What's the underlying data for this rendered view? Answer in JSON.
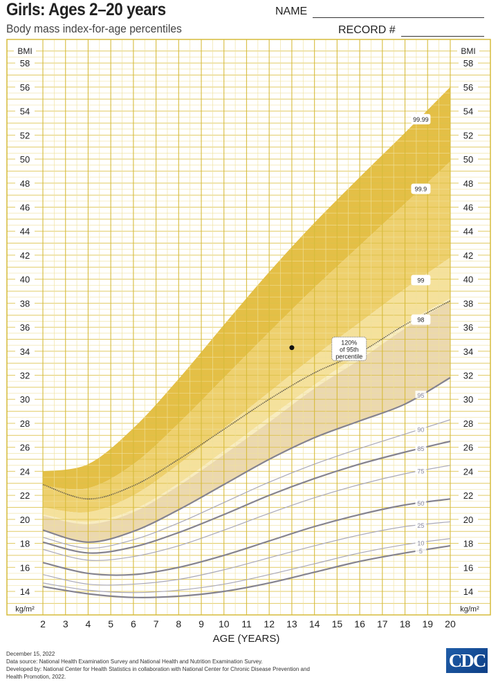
{
  "header": {
    "title": "Girls: Ages 2–20 years",
    "subtitle": "Body mass index-for-age percentiles",
    "name_label": "NAME",
    "record_label": "RECORD #"
  },
  "chart_data": {
    "type": "line",
    "xlabel": "AGE (YEARS)",
    "ylabel_left": "BMI",
    "ylabel_right": "BMI",
    "unit_left": "kg/m²",
    "unit_right": "kg/m²",
    "xlim": [
      2,
      20
    ],
    "ylim": [
      13,
      59
    ],
    "x_ticks": [
      2,
      3,
      4,
      5,
      6,
      7,
      8,
      9,
      10,
      11,
      12,
      13,
      14,
      15,
      16,
      17,
      18,
      19,
      20
    ],
    "y_ticks": [
      14,
      16,
      18,
      20,
      22,
      24,
      26,
      28,
      30,
      32,
      34,
      36,
      38,
      40,
      42,
      44,
      46,
      48,
      50,
      52,
      54,
      56,
      58
    ],
    "grid": true,
    "ages": [
      2,
      4,
      6,
      8,
      10,
      12,
      14,
      16,
      18,
      20
    ],
    "bands": [
      {
        "label": "99.99",
        "color": "#e3bc3c",
        "upper": [
          24.0,
          24.6,
          27.6,
          31.7,
          36.2,
          40.6,
          44.7,
          48.5,
          52.2,
          56.0
        ],
        "lower": [
          22.8,
          22.6,
          24.6,
          28.0,
          31.8,
          35.6,
          39.3,
          42.8,
          46.3,
          49.8
        ],
        "label_age": 18.7,
        "label_bmi": 53.3
      },
      {
        "label": "99.9",
        "color": "#edcd66",
        "upper": [
          22.8,
          22.6,
          24.6,
          28.0,
          31.8,
          35.6,
          39.3,
          42.8,
          46.3,
          49.8
        ],
        "lower": [
          21.0,
          20.6,
          22.0,
          24.6,
          27.6,
          30.6,
          33.6,
          36.4,
          39.2,
          41.8
        ],
        "label_age": 18.7,
        "label_bmi": 47.5
      },
      {
        "label": "99",
        "color": "#f4df97",
        "upper": [
          21.0,
          20.6,
          22.0,
          24.6,
          27.6,
          30.6,
          33.6,
          36.4,
          39.2,
          41.8
        ],
        "lower": [
          20.4,
          19.8,
          20.8,
          23.0,
          25.7,
          28.5,
          31.2,
          33.8,
          36.3,
          38.4
        ],
        "label_age": 18.7,
        "label_bmi": 39.9
      },
      {
        "label": "98",
        "color": "#f8ebbd",
        "upper": [
          20.4,
          19.8,
          20.8,
          23.0,
          25.7,
          28.5,
          31.2,
          33.8,
          36.3,
          38.4
        ],
        "lower": [
          20.3,
          19.6,
          20.6,
          22.8,
          25.4,
          28.1,
          30.9,
          33.3,
          35.9,
          38.2
        ],
        "label_age": 18.7,
        "label_bmi": 36.6
      },
      {
        "label": "",
        "color": "#ead6ab",
        "upper": [
          20.3,
          19.6,
          20.6,
          22.8,
          25.4,
          28.1,
          30.9,
          33.3,
          35.9,
          38.2
        ],
        "lower": [
          19.1,
          18.1,
          19.0,
          20.8,
          22.9,
          25.0,
          26.8,
          28.2,
          29.6,
          31.8
        ]
      }
    ],
    "reference_line": {
      "label_lines": [
        "120%",
        "of 95th",
        "percentile"
      ],
      "values": [
        22.9,
        21.7,
        22.8,
        25.0,
        27.5,
        30.0,
        32.2,
        33.9,
        36.2,
        38.2
      ],
      "label_age": 15.5,
      "label_bmi": 33.8
    },
    "series": [
      {
        "name": "95",
        "values": [
          19.1,
          18.1,
          19.0,
          20.8,
          22.9,
          25.0,
          26.8,
          28.2,
          29.6,
          31.8
        ],
        "bold": true
      },
      {
        "name": "90",
        "values": [
          18.5,
          17.6,
          18.3,
          19.7,
          21.4,
          23.1,
          24.6,
          25.9,
          27.1,
          28.3
        ],
        "bold": false
      },
      {
        "name": "85",
        "values": [
          18.1,
          17.2,
          17.7,
          18.9,
          20.4,
          22.0,
          23.4,
          24.6,
          25.6,
          26.5
        ],
        "bold": true
      },
      {
        "name": "75",
        "values": [
          17.5,
          16.6,
          16.9,
          17.8,
          19.1,
          20.5,
          21.8,
          22.9,
          23.8,
          24.5
        ],
        "bold": false
      },
      {
        "name": "50",
        "values": [
          16.4,
          15.5,
          15.4,
          16.0,
          17.0,
          18.2,
          19.4,
          20.4,
          21.2,
          21.7
        ],
        "bold": true
      },
      {
        "name": "25",
        "values": [
          15.4,
          14.6,
          14.6,
          15.0,
          15.8,
          16.8,
          17.8,
          18.7,
          19.4,
          19.8
        ],
        "bold": false
      },
      {
        "name": "10",
        "values": [
          14.7,
          14.1,
          13.9,
          14.1,
          14.6,
          15.4,
          16.3,
          17.2,
          17.9,
          18.4
        ],
        "bold": false
      },
      {
        "name": "5",
        "values": [
          14.4,
          13.8,
          13.5,
          13.6,
          14.0,
          14.7,
          15.6,
          16.5,
          17.2,
          17.8
        ],
        "bold": true
      }
    ],
    "points": [
      {
        "age": 13.0,
        "bmi": 34.3
      }
    ]
  },
  "footer": {
    "date": "December 15, 2022",
    "source": "Data source: National Health Examination Survey and National Health and Nutrition Examination Survey.",
    "developed": "Developed by: National Center for Health Statistics in collaboration with National Center for Chronic Disease Prevention and",
    "developed2": "Health Promotion, 2022.",
    "logo": "CDC"
  }
}
